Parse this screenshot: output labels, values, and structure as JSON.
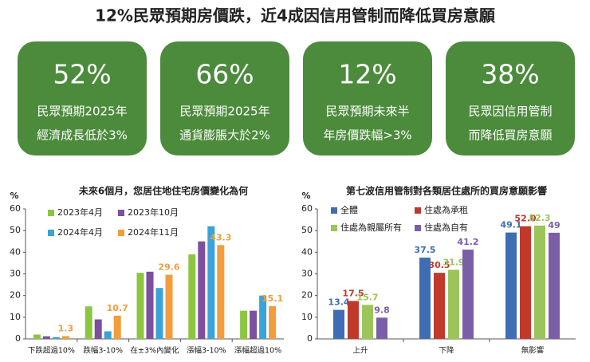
{
  "header": {
    "title": "12%民眾預期房價跌，近4成因信用管制而降低買房意願"
  },
  "cards": [
    {
      "value": "52%",
      "lines": [
        "民眾預期2025年",
        "經濟成長低於3%"
      ]
    },
    {
      "value": "66%",
      "lines": [
        "民眾預期2025年",
        "通貨膨脹大於2%"
      ]
    },
    {
      "value": "12%",
      "lines": [
        "民眾預期未來半",
        "年房價跌幅>3%"
      ]
    },
    {
      "value": "38%",
      "lines": [
        "民眾因信用管制",
        "而降低買房意願"
      ]
    }
  ],
  "chart_data": [
    {
      "type": "bar",
      "title": "未來6個月，您居住地住宅房價變化為何",
      "y_label": "%",
      "categories": [
        "下跌超過10%",
        "跌幅3-10%",
        "在±3%內變化",
        "漲幅3-10%",
        "漲幅超過10%"
      ],
      "ylim": [
        0,
        60
      ],
      "yticks": [
        0,
        10,
        20,
        30,
        40,
        50,
        60
      ],
      "series": [
        {
          "name": "2023年4月",
          "color": "#8cc63f",
          "values": [
            2.0,
            15.0,
            30.5,
            39.0,
            13.0
          ]
        },
        {
          "name": "2023年10月",
          "color": "#7d4f9f",
          "values": [
            1.2,
            9.0,
            31.0,
            45.0,
            13.0
          ]
        },
        {
          "name": "2024年4月",
          "color": "#3aa3d9",
          "values": [
            0.8,
            3.5,
            23.5,
            52.0,
            20.0
          ]
        },
        {
          "name": "2024年11月",
          "color": "#f39c3c",
          "values": [
            1.3,
            10.7,
            29.6,
            43.3,
            15.1
          ],
          "data_labels": true
        }
      ]
    },
    {
      "type": "bar",
      "title": "第七波信用管制對各類居住處所的買房意願影響",
      "y_label": "%",
      "categories": [
        "上升",
        "下降",
        "無影響"
      ],
      "ylim": [
        0,
        60
      ],
      "yticks": [
        0,
        10,
        20,
        30,
        40,
        50,
        60
      ],
      "series": [
        {
          "name": "全體",
          "color": "#3f6db4",
          "values": [
            13.4,
            37.5,
            49.1
          ],
          "data_labels": true
        },
        {
          "name": "住處為承租",
          "color": "#c0392b",
          "values": [
            17.5,
            30.5,
            52.0
          ],
          "value_labels": [
            "17.5",
            "30.5",
            "52.0"
          ],
          "data_labels": true
        },
        {
          "name": "住處為親屬所有",
          "color": "#9bc45a",
          "values": [
            15.7,
            31.9,
            52.3
          ],
          "data_labels": true
        },
        {
          "name": "住處為自有",
          "color": "#7b5ea7",
          "values": [
            9.8,
            41.2,
            49.0
          ],
          "data_labels": true
        }
      ]
    }
  ]
}
